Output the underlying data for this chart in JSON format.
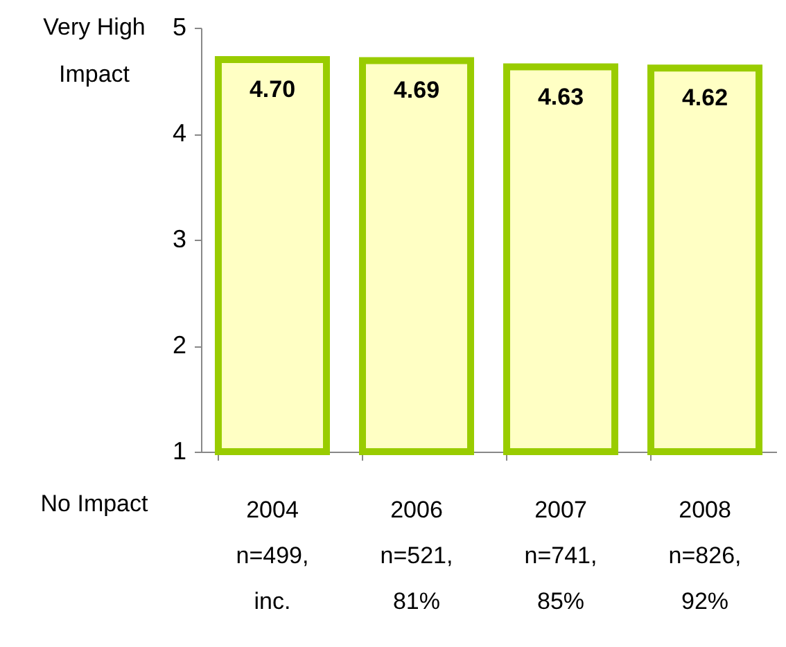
{
  "chart_data": {
    "type": "bar",
    "categories": [
      "2004\nn=499,\ninc.",
      "2006\nn=521,\n81%",
      "2007\nn=741,\n85%",
      "2008\nn=826,\n92%"
    ],
    "values": [
      4.7,
      4.69,
      4.63,
      4.62
    ],
    "color": "#ffffc4",
    "ylim": [
      1,
      5
    ],
    "yticks": [
      1,
      2,
      3,
      4,
      5
    ],
    "value_labels": [
      "4.70",
      "4.69",
      "4.63",
      "4.62"
    ],
    "grid": false,
    "annotations": [
      "Very High\nImpact",
      "No Impact"
    ]
  }
}
